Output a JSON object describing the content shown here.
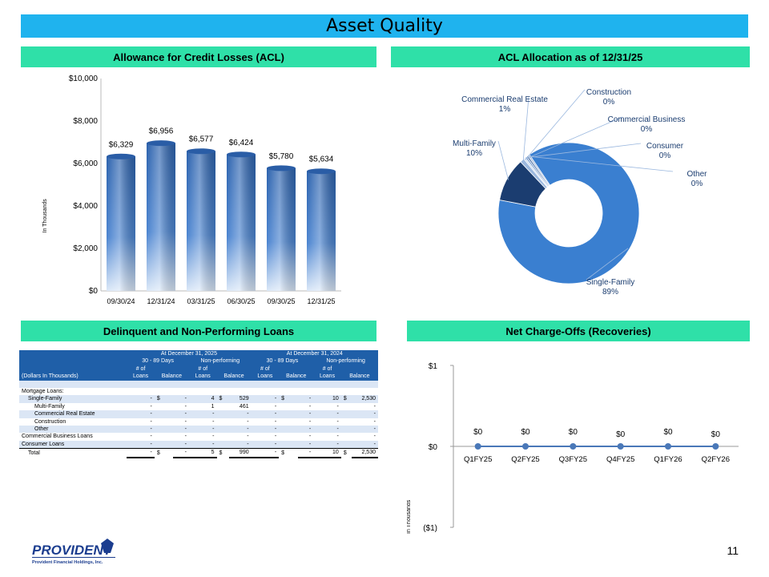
{
  "page": {
    "title": "Asset Quality",
    "page_number": "11"
  },
  "acl_section": {
    "title": "Allowance for Credit Losses (ACL)",
    "y_axis_label": "In Thousands"
  },
  "alloc_section": {
    "title": "ACL Allocation as of 12/31/25"
  },
  "delinquent_section": {
    "title": "Delinquent and Non-Performing Loans"
  },
  "nco_section": {
    "title": "Net Charge-Offs (Recoveries)",
    "y_axis_label": "In Thousands"
  },
  "chart_data": [
    {
      "type": "bar",
      "title": "Allowance for Credit Losses (ACL)",
      "ylabel": "In Thousands",
      "categories": [
        "09/30/24",
        "12/31/24",
        "03/31/25",
        "06/30/25",
        "09/30/25",
        "12/31/25"
      ],
      "values": [
        6329,
        6956,
        6577,
        6424,
        5780,
        5634
      ],
      "data_labels": [
        "$6,329",
        "$6,956",
        "$6,577",
        "$6,424",
        "$5,780",
        "$5,634"
      ],
      "yticks": [
        "$0",
        "$2,000",
        "$4,000",
        "$6,000",
        "$8,000",
        "$10,000"
      ],
      "ylim": [
        0,
        10000
      ],
      "color": "#2f6fc0"
    },
    {
      "type": "pie",
      "title": "ACL Allocation as of 12/31/25",
      "labels": [
        "Single-Family",
        "Multi-Family",
        "Commercial Real Estate",
        "Construction",
        "Commercial Business",
        "Consumer",
        "Other"
      ],
      "values": [
        89,
        10,
        1,
        0,
        0,
        0,
        0
      ],
      "percent_labels": [
        "89%",
        "10%",
        "1%",
        "0%",
        "0%",
        "0%",
        "0%"
      ],
      "colors": [
        "#3a7fd0",
        "#1b3d70",
        "#9bb8df",
        "#c8d8ee",
        "#6f96cc",
        "#4a6fa5",
        "#a9bedd"
      ]
    },
    {
      "type": "line",
      "title": "Net Charge-Offs (Recoveries)",
      "ylabel": "In Thousands",
      "categories": [
        "Q1FY25",
        "Q2FY25",
        "Q3FY25",
        "Q4FY25",
        "Q1FY26",
        "Q2FY26"
      ],
      "values": [
        0,
        0,
        0,
        0,
        0,
        0
      ],
      "data_labels": [
        "$0",
        "$0",
        "$0",
        "$0",
        "$0",
        "$0"
      ],
      "yticks": [
        "($1)",
        "$0",
        "$1"
      ],
      "ylim": [
        -1,
        1
      ],
      "color": "#4a78b8"
    }
  ],
  "table": {
    "group_headers": [
      "At December 31, 2025",
      "At December 31, 2024"
    ],
    "sub_headers": [
      "30 - 89 Days",
      "Non-performing",
      "30 - 89 Days",
      "Non-performing"
    ],
    "col_headers_top": [
      "# of",
      "",
      "# of",
      "",
      "# of",
      "",
      "# of",
      ""
    ],
    "col_headers_bottom": [
      "Loans",
      "Balance",
      "Loans",
      "Balance",
      "Loans",
      "Balance",
      "Loans",
      "Balance"
    ],
    "row_label_header": "(Dollars In Thousands)",
    "section_label": "Mortgage Loans:",
    "rows": [
      {
        "label": "Single-Family",
        "indent": 1,
        "cells": [
          "-",
          "$",
          "-",
          "4",
          "$",
          "529",
          "-",
          "$",
          "-",
          "10",
          "$",
          "2,530"
        ]
      },
      {
        "label": "Multi-Family",
        "indent": 2,
        "cells": [
          "-",
          "",
          "-",
          "1",
          "",
          "461",
          "-",
          "",
          "-",
          "-",
          "",
          "-"
        ]
      },
      {
        "label": "Commercial Real Estate",
        "indent": 2,
        "cells": [
          "-",
          "",
          "-",
          "-",
          "",
          "-",
          "-",
          "",
          "-",
          "-",
          "",
          "-"
        ]
      },
      {
        "label": "Construction",
        "indent": 2,
        "cells": [
          "-",
          "",
          "-",
          "-",
          "",
          "-",
          "-",
          "",
          "-",
          "-",
          "",
          "-"
        ]
      },
      {
        "label": "Other",
        "indent": 2,
        "cells": [
          "-",
          "",
          "-",
          "-",
          "",
          "-",
          "-",
          "",
          "-",
          "-",
          "",
          "-"
        ]
      },
      {
        "label": "Commercial Business Loans",
        "indent": 0,
        "cells": [
          "-",
          "",
          "-",
          "-",
          "",
          "-",
          "-",
          "",
          "-",
          "-",
          "",
          "-"
        ]
      },
      {
        "label": "Consumer Loans",
        "indent": 0,
        "cells": [
          "-",
          "",
          "-",
          "-",
          "",
          "-",
          "-",
          "",
          "-",
          "-",
          "",
          "-"
        ]
      },
      {
        "label": "Total",
        "indent": 1,
        "total": true,
        "cells": [
          "-",
          "$",
          "-",
          "5",
          "$",
          "990",
          "-",
          "$",
          "-",
          "10",
          "$",
          "2,530"
        ]
      }
    ]
  },
  "logo": {
    "name": "PROVIDENT",
    "tagline": "Provident Financial Holdings, Inc."
  }
}
